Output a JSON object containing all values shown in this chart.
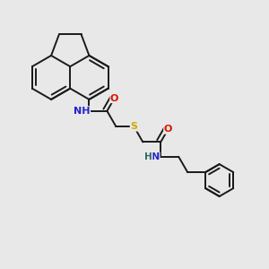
{
  "bg_color": "#e8e8e8",
  "bond_color": "#1a1a1a",
  "bond_lw": 1.4,
  "atom_colors": {
    "N": "#2222cc",
    "O": "#dd1100",
    "S": "#ccaa00",
    "NH": "#2222cc",
    "H": "#336666"
  },
  "font_size_atom": 8.0,
  "font_size_h": 7.5
}
